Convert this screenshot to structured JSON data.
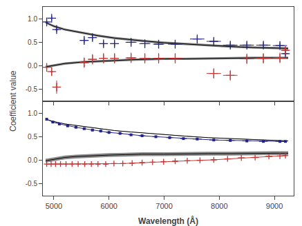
{
  "chart_data": {
    "type": "panels",
    "xlabel": "Wavelength (Å)",
    "ylabel": "Coefficient value",
    "xlim": [
      4800,
      9350
    ],
    "xticks": [
      5000,
      6000,
      7000,
      8000,
      9000
    ],
    "grid": false,
    "panels": [
      {
        "ylim": [
          -0.75,
          1.25
        ],
        "yticks": [
          -0.5,
          {
            "value": 0,
            "label": "0.0"
          },
          0.5,
          {
            "value": 1,
            "label": "1.0"
          }
        ],
        "tick_labels": "y",
        "series": [
          {
            "type": "band",
            "color": "#888888",
            "x": [
              4850,
              5000,
              5200,
              5500,
              5800,
              6100,
              6400,
              6700,
              7000,
              7400,
              7800,
              8200,
              8600,
              9000,
              9250
            ],
            "values": [
              0.92,
              0.84,
              0.77,
              0.7,
              0.64,
              0.59,
              0.55,
              0.52,
              0.49,
              0.46,
              0.43,
              0.41,
              0.39,
              0.38,
              0.37
            ],
            "band": 0.025
          },
          {
            "type": "line",
            "color": "black",
            "x": [
              4850,
              5000,
              5200,
              5500,
              5800,
              6100,
              6400,
              6700,
              7000,
              7400,
              7800,
              8200,
              8600,
              9000,
              9250
            ],
            "values": [
              0.92,
              0.84,
              0.77,
              0.7,
              0.64,
              0.59,
              0.55,
              0.52,
              0.49,
              0.46,
              0.43,
              0.41,
              0.39,
              0.38,
              0.37
            ]
          },
          {
            "type": "band",
            "color": "#888888",
            "x": [
              4850,
              5000,
              5200,
              5500,
              5800,
              6100,
              6400,
              6700,
              7000,
              7400,
              7800,
              8200,
              8600,
              9000,
              9250
            ],
            "values": [
              -0.02,
              0.01,
              0.05,
              0.08,
              0.1,
              0.12,
              0.13,
              0.14,
              0.15,
              0.15,
              0.16,
              0.16,
              0.17,
              0.17,
              0.17
            ],
            "band": 0.025
          },
          {
            "type": "line",
            "color": "black",
            "x": [
              4850,
              5000,
              5200,
              5500,
              5800,
              6100,
              6400,
              6700,
              7000,
              7400,
              7800,
              8200,
              8600,
              9000,
              9250
            ],
            "values": [
              -0.02,
              0.01,
              0.05,
              0.08,
              0.1,
              0.12,
              0.13,
              0.14,
              0.15,
              0.15,
              0.16,
              0.16,
              0.17,
              0.17,
              0.17
            ]
          },
          {
            "type": "scatter",
            "marker": "cross",
            "color": "#22228a",
            "x": [
              4870,
              4960,
              5050,
              5550,
              5700,
              5900,
              6100,
              6400,
              6650,
              6900,
              7200,
              7600,
              7900,
              8200,
              8500,
              8800,
              9100,
              9200
            ],
            "values": [
              0.93,
              1.01,
              0.77,
              0.54,
              0.6,
              0.47,
              0.47,
              0.5,
              0.47,
              0.46,
              0.46,
              0.57,
              0.52,
              0.44,
              0.44,
              0.44,
              0.43,
              0.26
            ],
            "xerr": [
              30,
              30,
              30,
              80,
              80,
              80,
              80,
              100,
              100,
              100,
              130,
              130,
              130,
              130,
              130,
              130,
              130,
              50
            ],
            "yerr": [
              0.05,
              0.05,
              0.05,
              0.06,
              0.06,
              0.06,
              0.06,
              0.06,
              0.06,
              0.06,
              0.06,
              0.06,
              0.06,
              0.06,
              0.06,
              0.06,
              0.06,
              0.05
            ]
          },
          {
            "type": "scatter",
            "marker": "cross",
            "color": "#cc3333",
            "x": [
              4870,
              4960,
              5050,
              5550,
              5700,
              5900,
              6100,
              6400,
              6650,
              6900,
              7200,
              7900,
              8200,
              8500,
              8800,
              9100,
              9200
            ],
            "values": [
              -0.03,
              -0.12,
              -0.45,
              0.07,
              0.14,
              0.16,
              0.16,
              0.17,
              0.16,
              0.16,
              0.16,
              -0.16,
              -0.2,
              0.15,
              0.16,
              0.17,
              0.33
            ],
            "xerr": [
              30,
              30,
              30,
              80,
              80,
              80,
              80,
              100,
              100,
              100,
              130,
              130,
              130,
              130,
              130,
              130,
              50
            ],
            "yerr": [
              0.08,
              0.09,
              0.14,
              0.11,
              0.11,
              0.11,
              0.11,
              0.11,
              0.11,
              0.11,
              0.11,
              0.11,
              0.11,
              0.11,
              0.11,
              0.11,
              0.07
            ]
          }
        ]
      },
      {
        "ylim": [
          -0.75,
          1.25
        ],
        "yticks": [
          -0.5,
          {
            "value": 0,
            "label": "0.0"
          },
          0.5,
          {
            "value": 1,
            "label": "1.0"
          }
        ],
        "series": [
          {
            "type": "band",
            "color": "#888888",
            "x": [
              4850,
              5000,
              5200,
              5500,
              5800,
              6100,
              6400,
              6700,
              7000,
              7400,
              7800,
              8200,
              8600,
              9000,
              9250
            ],
            "values": [
              0.87,
              0.82,
              0.77,
              0.72,
              0.67,
              0.63,
              0.6,
              0.57,
              0.54,
              0.51,
              0.48,
              0.46,
              0.44,
              0.42,
              0.41
            ],
            "band": 0.005
          },
          {
            "type": "line",
            "color": "black",
            "x": [
              4850,
              5000,
              5200,
              5500,
              5800,
              6100,
              6400,
              6700,
              7000,
              7400,
              7800,
              8200,
              8600,
              9000,
              9250
            ],
            "values": [
              0.87,
              0.82,
              0.77,
              0.72,
              0.67,
              0.63,
              0.6,
              0.57,
              0.54,
              0.51,
              0.48,
              0.46,
              0.44,
              0.42,
              0.41
            ]
          },
          {
            "type": "band",
            "color": "#888888",
            "x": [
              4850,
              4900,
              4970,
              5060,
              5200,
              5400,
              5700,
              6000,
              6300,
              6600,
              7000,
              7400,
              7800,
              8200,
              8600,
              9000,
              9250
            ],
            "values": [
              -0.01,
              0.0,
              0.02,
              0.04,
              0.06,
              0.08,
              0.1,
              0.11,
              0.12,
              0.13,
              0.13,
              0.14,
              0.14,
              0.14,
              0.15,
              0.15,
              0.15
            ],
            "band": 0.04
          },
          {
            "type": "line",
            "color": "black",
            "x": [
              4850,
              4900,
              4970,
              5060,
              5200,
              5400,
              5700,
              6000,
              6300,
              6600,
              7000,
              7400,
              7800,
              8200,
              8600,
              9000,
              9250
            ],
            "values": [
              -0.01,
              0.0,
              0.02,
              0.04,
              0.06,
              0.08,
              0.1,
              0.11,
              0.12,
              0.13,
              0.13,
              0.14,
              0.14,
              0.14,
              0.15,
              0.15,
              0.15
            ]
          },
          {
            "type": "line",
            "marker": "square",
            "color": "#22228a",
            "x": [
              4870,
              4980,
              5100,
              5250,
              5400,
              5550,
              5700,
              5850,
              6000,
              6200,
              6400,
              6600,
              6850,
              7100,
              7350,
              7600,
              7900,
              8200,
              8500,
              8800,
              9100,
              9200
            ],
            "values": [
              0.87,
              0.81,
              0.77,
              0.73,
              0.7,
              0.67,
              0.64,
              0.62,
              0.59,
              0.57,
              0.54,
              0.52,
              0.5,
              0.48,
              0.46,
              0.45,
              0.43,
              0.42,
              0.41,
              0.4,
              0.4,
              0.4
            ],
            "xerr": [
              15,
              15,
              15,
              30,
              30,
              30,
              30,
              30,
              50,
              50,
              50,
              60,
              60,
              60,
              60,
              80,
              80,
              80,
              80,
              80,
              80,
              30
            ],
            "yerr": [
              0.004,
              0.004,
              0.004,
              0.004,
              0.004,
              0.004,
              0.004,
              0.004,
              0.004,
              0.004,
              0.004,
              0.004,
              0.004,
              0.004,
              0.004,
              0.004,
              0.004,
              0.004,
              0.004,
              0.004,
              0.004,
              0.004
            ]
          },
          {
            "type": "line",
            "marker": "cross",
            "color": "#cc3333",
            "x": [
              4870,
              4950,
              5030,
              5120,
              5220,
              5330,
              5440,
              5560,
              5680,
              5800,
              5940,
              6090,
              6250,
              6420,
              6600,
              6790,
              6990,
              7200,
              7420,
              7650,
              7900,
              8150,
              8400,
              8650,
              8900,
              9100,
              9200
            ],
            "values": [
              -0.08,
              -0.08,
              -0.08,
              -0.08,
              -0.08,
              -0.08,
              -0.08,
              -0.08,
              -0.08,
              -0.08,
              -0.08,
              -0.07,
              -0.07,
              -0.06,
              -0.05,
              -0.04,
              -0.03,
              -0.02,
              -0.01,
              0.0,
              0.01,
              0.03,
              0.05,
              0.06,
              0.08,
              0.09,
              0.1
            ],
            "xerr": [
              15,
              15,
              15,
              15,
              20,
              20,
              20,
              20,
              20,
              30,
              30,
              30,
              30,
              40,
              40,
              40,
              50,
              50,
              50,
              60,
              60,
              60,
              70,
              70,
              70,
              50,
              20
            ],
            "yerr": [
              0.004,
              0.004,
              0.004,
              0.004,
              0.004,
              0.004,
              0.004,
              0.004,
              0.004,
              0.004,
              0.004,
              0.004,
              0.004,
              0.004,
              0.004,
              0.004,
              0.004,
              0.004,
              0.004,
              0.004,
              0.004,
              0.004,
              0.004,
              0.004,
              0.004,
              0.004,
              0.004
            ]
          }
        ]
      }
    ]
  }
}
